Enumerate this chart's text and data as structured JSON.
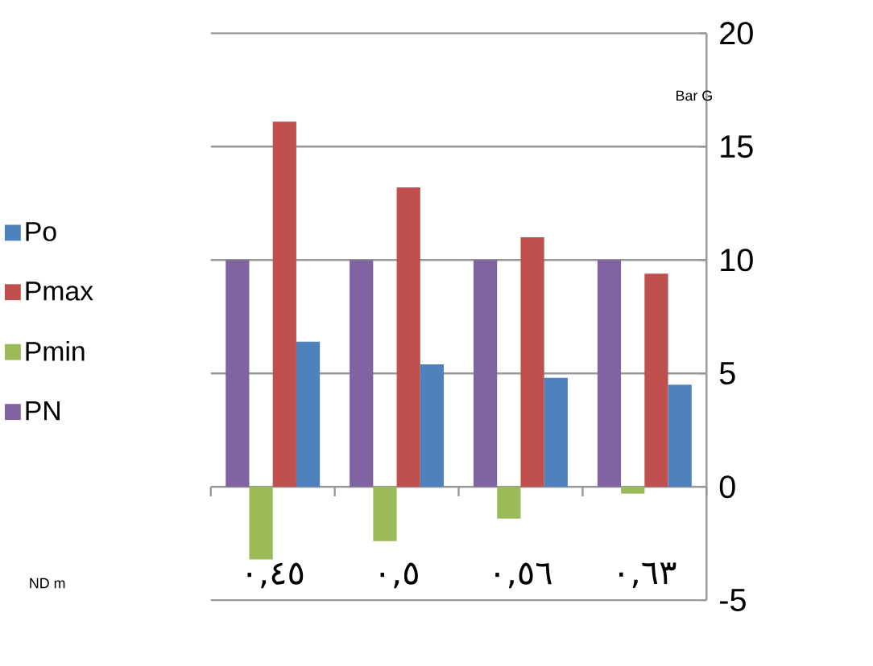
{
  "chart_data": {
    "type": "bar",
    "categories": [
      "٠,٤٥",
      "٠,٥",
      "٠,٥٦",
      "٠,٦٣"
    ],
    "series": [
      {
        "name": "PN",
        "color": "#8064a2",
        "values": [
          10,
          10,
          10,
          10
        ]
      },
      {
        "name": "Pmin",
        "color": "#9bbb59",
        "values": [
          -3.2,
          -2.4,
          -1.4,
          -0.3
        ]
      },
      {
        "name": "Pmax",
        "color": "#c0504d",
        "values": [
          16.1,
          13.2,
          11.0,
          9.4
        ]
      },
      {
        "name": "Po",
        "color": "#4f81bd",
        "values": [
          6.4,
          5.4,
          4.8,
          4.5
        ]
      }
    ],
    "annotations": [
      "ND m"
    ],
    "ylabel": "Bar G",
    "ylim": [
      -5,
      20
    ],
    "yticks": [
      -5,
      0,
      5,
      10,
      15,
      20
    ],
    "grid": "y",
    "legend": "left"
  }
}
